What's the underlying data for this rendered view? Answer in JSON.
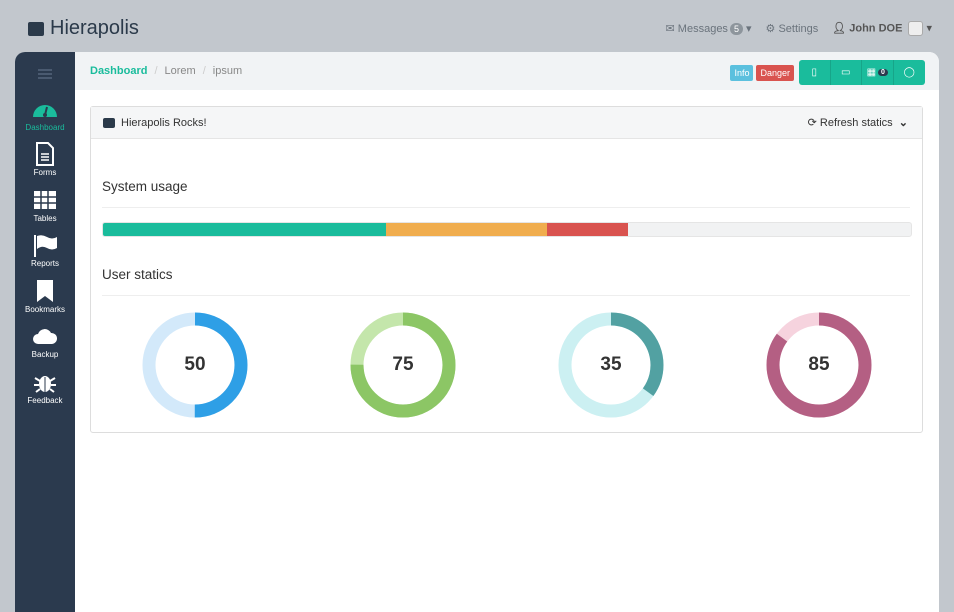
{
  "brand": {
    "name": "Hierapolis"
  },
  "topnav": {
    "messages": "Messages",
    "messages_count": "5",
    "settings": "Settings",
    "user": "John DOE"
  },
  "sidebar": {
    "items": [
      {
        "label": "Dashboard"
      },
      {
        "label": "Forms"
      },
      {
        "label": "Tables"
      },
      {
        "label": "Reports"
      },
      {
        "label": "Bookmarks"
      },
      {
        "label": "Backup"
      },
      {
        "label": "Feedback"
      }
    ]
  },
  "breadcrumb": [
    "Dashboard",
    "Lorem",
    "ipsum"
  ],
  "toolbar": {
    "info": "Info",
    "danger": "Danger",
    "calendar_count": "0"
  },
  "panel": {
    "title": "Hierapolis Rocks!",
    "refresh": "Refresh statics",
    "system_usage": "System usage",
    "user_statics": "User statics"
  },
  "usage": [
    {
      "percent": 35,
      "color": "#1abc9c"
    },
    {
      "percent": 20,
      "color": "#f0ad4e"
    },
    {
      "percent": 10,
      "color": "#d9534f"
    }
  ],
  "donuts": [
    {
      "value": 50,
      "color": "#2e9fe6",
      "track": "#d3e9fa"
    },
    {
      "value": 75,
      "color": "#8cc665",
      "track": "#c4e6ab"
    },
    {
      "value": 35,
      "color": "#52a1a2",
      "track": "#ccf0f2"
    },
    {
      "value": 85,
      "color": "#b45f83",
      "track": "#f6d3de"
    }
  ]
}
